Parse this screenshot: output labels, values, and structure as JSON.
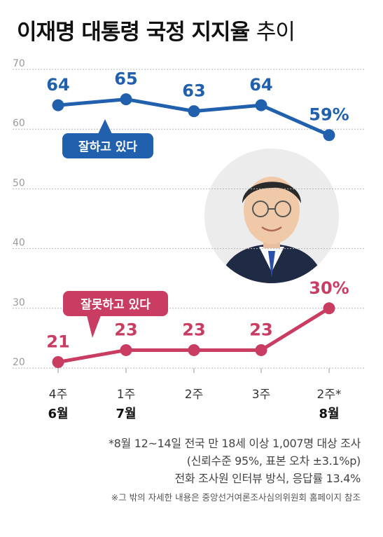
{
  "title": {
    "main": "이재명 대통령 국정 지지율",
    "sub": "추이"
  },
  "chart_data": {
    "type": "line",
    "categories": [
      {
        "week": "4주",
        "month": "6월"
      },
      {
        "week": "1주",
        "month": "7월"
      },
      {
        "week": "2주",
        "month": ""
      },
      {
        "week": "3주",
        "month": ""
      },
      {
        "week": "2주*",
        "month": "8월"
      }
    ],
    "series": [
      {
        "name": "잘하고 있다",
        "values": [
          64,
          65,
          63,
          64,
          59
        ],
        "labels": [
          "64",
          "65",
          "63",
          "64",
          "59%"
        ],
        "color": "#2160ad"
      },
      {
        "name": "잘못하고 있다",
        "values": [
          21,
          23,
          23,
          23,
          30
        ],
        "labels": [
          "21",
          "23",
          "23",
          "23",
          "30%"
        ],
        "color": "#c93d63"
      }
    ],
    "yticks": [
      "20",
      "30",
      "40",
      "50",
      "60",
      "70"
    ],
    "ylim": [
      20,
      70
    ],
    "grid": true
  },
  "notes": {
    "line1": "*8월 12~14일 전국 만 18세 이상 1,007명 대상 조사",
    "line2": "(신뢰수준 95%, 표본 오차 ±3.1%p)",
    "line3": "전화 조사원 인터뷰 방식, 응답률 13.4%",
    "source": "※그 밖의 자세한 내용은 중앙선거여론조사심의위원회 홈페이지 참조"
  }
}
